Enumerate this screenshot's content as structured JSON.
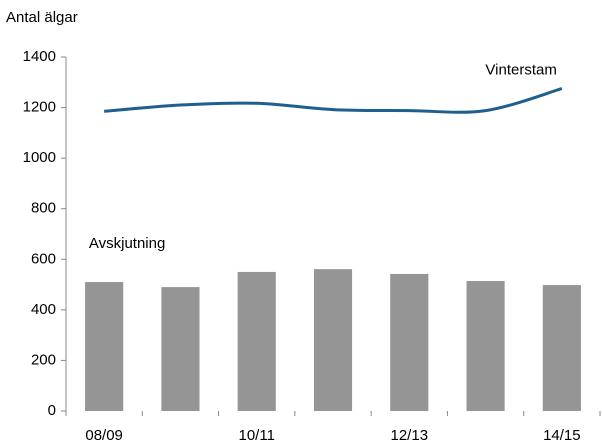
{
  "chart_data": {
    "type": "bar",
    "ylabel": "Antal älgar",
    "categories": [
      "08/09",
      null,
      "10/11",
      null,
      "12/13",
      null,
      "14/15"
    ],
    "series": [
      {
        "name": "Avskjutning",
        "color": "#959595",
        "type": "bar",
        "values": [
          510,
          490,
          550,
          561,
          542,
          514,
          498
        ]
      },
      {
        "name": "Vinterstam",
        "color": "#1f5f8f",
        "type": "line",
        "values": [
          1185,
          1210,
          1217,
          1192,
          1188,
          1188,
          1275
        ]
      }
    ],
    "ylim": [
      0,
      1400
    ],
    "yticks": [
      0,
      200,
      400,
      600,
      800,
      1000,
      1200,
      1400
    ],
    "grid": false
  }
}
